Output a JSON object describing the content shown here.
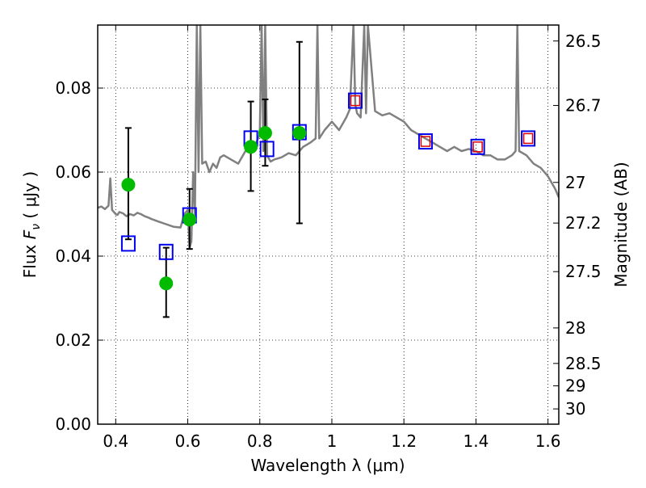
{
  "chart_data": {
    "type": "scatter",
    "xlabel": "Wavelength  λ (μm)",
    "ylabel": "Flux  F_ν  ( μJy )",
    "ylabel_parts": {
      "prefix": "Flux  ",
      "var": "F",
      "sub": "ν",
      "unit": "  ( μJy )"
    },
    "y2label": "Magnitude (AB)",
    "xlim": [
      0.35,
      1.63
    ],
    "ylim": [
      0.0,
      0.095
    ],
    "xticks": [
      0.4,
      0.6,
      0.8,
      1.0,
      1.2,
      1.4,
      1.6
    ],
    "xtick_labels": [
      "0.4",
      "0.6",
      "0.8",
      "1",
      "1.2",
      "1.4",
      "1.6"
    ],
    "yticks": [
      0.0,
      0.02,
      0.04,
      0.06,
      0.08
    ],
    "ytick_labels": [
      "0.00",
      "0.02",
      "0.04",
      "0.06",
      "0.08"
    ],
    "y2ticks": [
      {
        "label": "26.5",
        "mag": 26.5
      },
      {
        "label": "26.7",
        "mag": 26.7
      },
      {
        "label": "27",
        "mag": 27.0
      },
      {
        "label": "27.2",
        "mag": 27.2
      },
      {
        "label": "27.5",
        "mag": 27.5
      },
      {
        "label": "28",
        "mag": 28.0
      },
      {
        "label": "28.5",
        "mag": 28.5
      },
      {
        "label": "29",
        "mag": 29.0
      },
      {
        "label": "30",
        "mag": 30.0
      }
    ],
    "grid": true,
    "colors": {
      "model": "#808080",
      "observed": "#00bb00",
      "model_phot": "#0000ee",
      "nir_phot": "#dd0000",
      "errorbar": "#000000"
    },
    "series": [
      {
        "kind": "line",
        "x": [
          0.35,
          0.36,
          0.37,
          0.38,
          0.385,
          0.39,
          0.4,
          0.405,
          0.41,
          0.42,
          0.43,
          0.44,
          0.45,
          0.46,
          0.47,
          0.48,
          0.49,
          0.5,
          0.52,
          0.54,
          0.56,
          0.58,
          0.59,
          0.6,
          0.605,
          0.61,
          0.615,
          0.62,
          0.625,
          0.63,
          0.635,
          0.64,
          0.65,
          0.66,
          0.67,
          0.68,
          0.69,
          0.7,
          0.72,
          0.74,
          0.76,
          0.78,
          0.8,
          0.805,
          0.81,
          0.815,
          0.82,
          0.83,
          0.84,
          0.86,
          0.88,
          0.9,
          0.92,
          0.94,
          0.955,
          0.96,
          0.965,
          0.98,
          1.0,
          1.02,
          1.04,
          1.05,
          1.06,
          1.065,
          1.07,
          1.08,
          1.09,
          1.095,
          1.1,
          1.12,
          1.14,
          1.16,
          1.18,
          1.2,
          1.22,
          1.24,
          1.26,
          1.28,
          1.3,
          1.32,
          1.34,
          1.36,
          1.38,
          1.4,
          1.42,
          1.44,
          1.46,
          1.48,
          1.5,
          1.51,
          1.515,
          1.52,
          1.54,
          1.56,
          1.58,
          1.6,
          1.62,
          1.63
        ],
        "y": [
          0.0515,
          0.0518,
          0.0512,
          0.052,
          0.0585,
          0.051,
          0.05,
          0.0498,
          0.0505,
          0.0502,
          0.0495,
          0.05,
          0.0497,
          0.0503,
          0.05,
          0.0495,
          0.0492,
          0.0488,
          0.0482,
          0.0476,
          0.047,
          0.0468,
          0.05,
          0.051,
          0.042,
          0.0435,
          0.06,
          0.05,
          0.095,
          0.06,
          0.095,
          0.062,
          0.0625,
          0.06,
          0.062,
          0.061,
          0.0635,
          0.064,
          0.063,
          0.062,
          0.065,
          0.065,
          0.069,
          0.095,
          0.065,
          0.095,
          0.064,
          0.0625,
          0.063,
          0.0635,
          0.0645,
          0.064,
          0.066,
          0.067,
          0.068,
          0.095,
          0.068,
          0.07,
          0.072,
          0.07,
          0.073,
          0.075,
          0.095,
          0.076,
          0.074,
          0.073,
          0.095,
          0.074,
          0.095,
          0.0745,
          0.0735,
          0.074,
          0.073,
          0.072,
          0.07,
          0.069,
          0.068,
          0.067,
          0.066,
          0.065,
          0.066,
          0.065,
          0.0655,
          0.065,
          0.064,
          0.064,
          0.063,
          0.063,
          0.064,
          0.065,
          0.095,
          0.065,
          0.064,
          0.062,
          0.061,
          0.059,
          0.056,
          0.054
        ]
      },
      {
        "kind": "points",
        "x": [
          0.435,
          0.54,
          0.605,
          0.775,
          0.815,
          0.91
        ],
        "y": [
          0.057,
          0.0335,
          0.0487,
          0.066,
          0.0693,
          0.0693
        ],
        "yerr_low": [
          0.013,
          0.008,
          0.007,
          0.0105,
          0.0078,
          0.0215
        ],
        "yerr_high": [
          0.0135,
          0.0085,
          0.0073,
          0.0108,
          0.008,
          0.0217
        ]
      },
      {
        "kind": "squares",
        "x": [
          0.435,
          0.54,
          0.605,
          0.775,
          0.82,
          0.91,
          1.065,
          1.26,
          1.405,
          1.545
        ],
        "y": [
          0.043,
          0.041,
          0.0497,
          0.068,
          0.0655,
          0.0695,
          0.077,
          0.0673,
          0.066,
          0.068
        ]
      },
      {
        "kind": "squares",
        "x": [
          1.065,
          1.26,
          1.405,
          1.545
        ],
        "y": [
          0.077,
          0.0673,
          0.066,
          0.068
        ]
      }
    ]
  }
}
